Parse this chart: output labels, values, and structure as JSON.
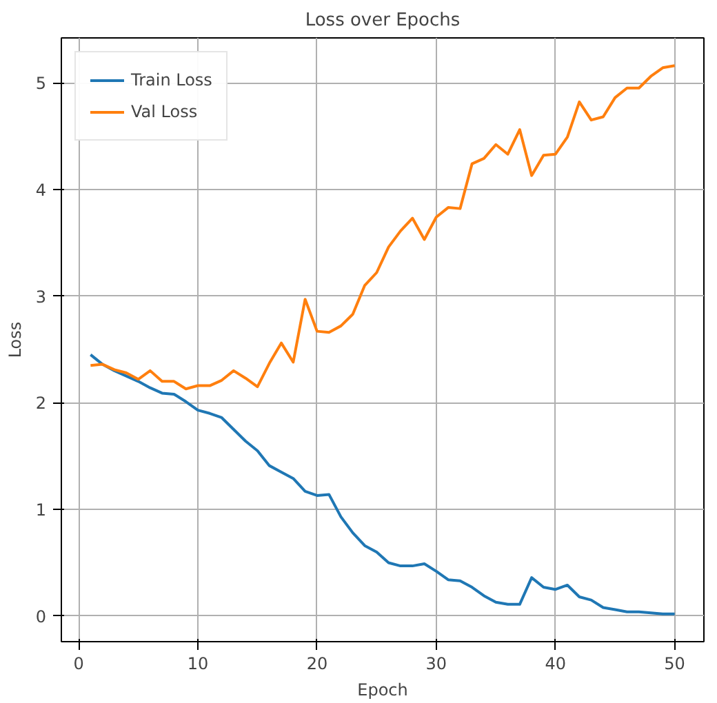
{
  "chart_data": {
    "type": "line",
    "title": "Loss over Epochs",
    "xlabel": "Epoch",
    "ylabel": "Loss",
    "x": [
      1,
      2,
      3,
      4,
      5,
      6,
      7,
      8,
      9,
      10,
      11,
      12,
      13,
      14,
      15,
      16,
      17,
      18,
      19,
      20,
      21,
      22,
      23,
      24,
      25,
      26,
      27,
      28,
      29,
      30,
      31,
      32,
      33,
      34,
      35,
      36,
      37,
      38,
      39,
      40,
      41,
      42,
      43,
      44,
      45,
      46,
      47,
      48,
      49,
      50
    ],
    "series": [
      {
        "name": "Train Loss",
        "color": "#1f77b4",
        "values": [
          2.45,
          2.36,
          2.3,
          2.25,
          2.2,
          2.14,
          2.09,
          2.08,
          2.01,
          1.93,
          1.9,
          1.86,
          1.75,
          1.64,
          1.55,
          1.41,
          1.35,
          1.29,
          1.17,
          1.13,
          1.14,
          0.93,
          0.78,
          0.66,
          0.6,
          0.5,
          0.47,
          0.47,
          0.49,
          0.42,
          0.34,
          0.33,
          0.27,
          0.19,
          0.13,
          0.11,
          0.11,
          0.36,
          0.27,
          0.25,
          0.29,
          0.18,
          0.15,
          0.08,
          0.06,
          0.04,
          0.04,
          0.03,
          0.02,
          0.02
        ]
      },
      {
        "name": "Val Loss",
        "color": "#ff7f0e",
        "values": [
          2.35,
          2.36,
          2.31,
          2.28,
          2.22,
          2.3,
          2.2,
          2.2,
          2.13,
          2.16,
          2.16,
          2.21,
          2.3,
          2.23,
          2.15,
          2.37,
          2.56,
          2.38,
          2.97,
          2.67,
          2.66,
          2.72,
          2.83,
          3.1,
          3.22,
          3.46,
          3.61,
          3.73,
          3.53,
          3.74,
          3.83,
          3.82,
          4.24,
          4.29,
          4.42,
          4.33,
          4.56,
          4.13,
          4.32,
          4.33,
          4.49,
          4.82,
          4.65,
          4.68,
          4.86,
          4.95,
          4.95,
          5.06,
          5.14,
          5.16
        ]
      }
    ],
    "xlim": [
      -1.45,
      52.45
    ],
    "ylim": [
      -0.24,
      5.42
    ],
    "xticks": [
      0,
      10,
      20,
      30,
      40,
      50
    ],
    "yticks": [
      0,
      1,
      2,
      3,
      4,
      5
    ],
    "grid": true,
    "legend": "top left"
  }
}
